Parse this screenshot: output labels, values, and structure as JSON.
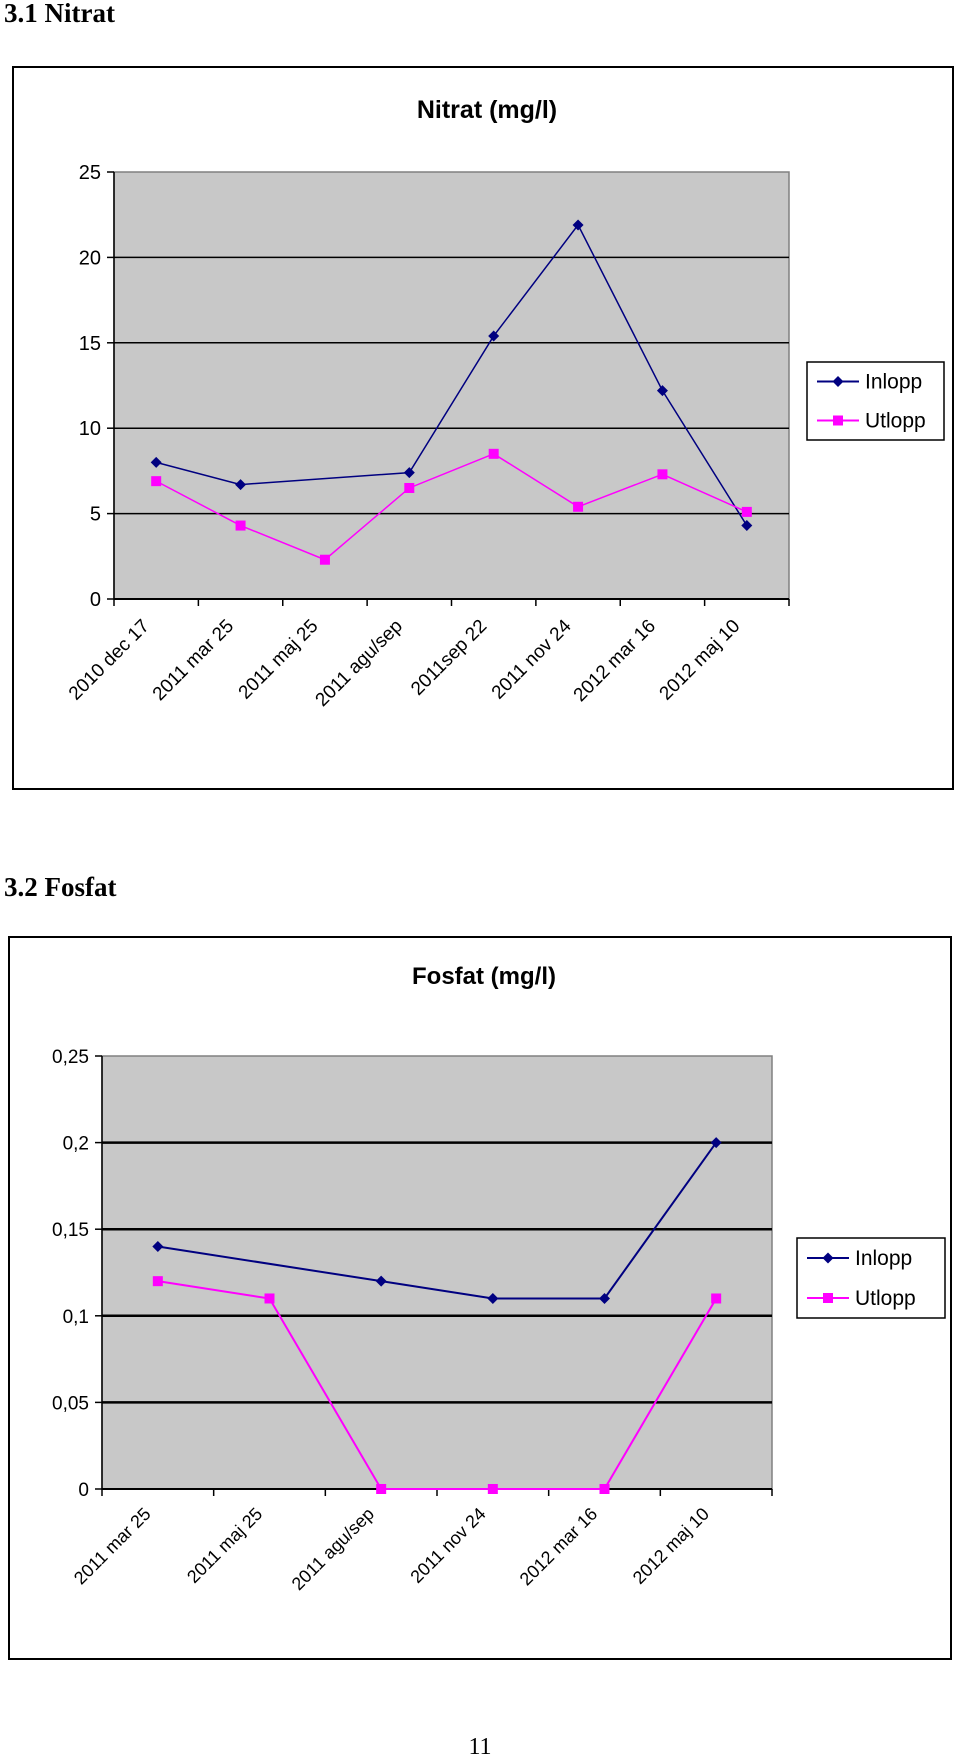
{
  "headings": {
    "nitrat": "3.1 Nitrat",
    "fosfat": "3.2 Fosfat"
  },
  "page_number": "11",
  "colors": {
    "inlopp": "#000080",
    "utlopp": "#ff00ff",
    "plot_bg": "#c8c8c8"
  },
  "chart_data": [
    {
      "type": "line",
      "title": "Nitrat (mg/l)",
      "xlabel": "",
      "ylabel": "",
      "ylim": [
        0,
        25
      ],
      "yticks": [
        "0",
        "5",
        "10",
        "15",
        "20",
        "25"
      ],
      "grid": true,
      "legend_position": "right",
      "categories": [
        "2010 dec 17",
        "2011 mar 25",
        "2011 maj 25",
        "2011 agu/sep",
        "2011sep 22",
        "2011 nov 24",
        "2012 mar 16",
        "2012 maj 10"
      ],
      "series": [
        {
          "name": "Inlopp",
          "color": "#000080",
          "marker": "diamond",
          "values": [
            8.0,
            6.7,
            null,
            7.4,
            15.4,
            21.9,
            12.2,
            4.3
          ]
        },
        {
          "name": "Utlopp",
          "color": "#ff00ff",
          "marker": "square",
          "values": [
            6.9,
            4.3,
            2.3,
            6.5,
            8.5,
            5.4,
            7.3,
            5.1
          ]
        }
      ]
    },
    {
      "type": "line",
      "title": "Fosfat (mg/l)",
      "xlabel": "",
      "ylabel": "",
      "ylim": [
        0,
        0.25
      ],
      "yticks": [
        "0",
        "0,05",
        "0,1",
        "0,15",
        "0,2",
        "0,25"
      ],
      "grid": true,
      "legend_position": "right",
      "categories": [
        "2011 mar 25",
        "2011 maj 25",
        "2011 agu/sep",
        "2011 nov 24",
        "2012 mar 16",
        "2012 maj 10"
      ],
      "series": [
        {
          "name": "Inlopp",
          "color": "#000080",
          "marker": "diamond",
          "values": [
            0.14,
            null,
            0.12,
            0.11,
            0.11,
            0.2
          ]
        },
        {
          "name": "Utlopp",
          "color": "#ff00ff",
          "marker": "square",
          "values": [
            0.12,
            0.11,
            0.0,
            0.0,
            0.0,
            0.11
          ]
        }
      ]
    }
  ]
}
